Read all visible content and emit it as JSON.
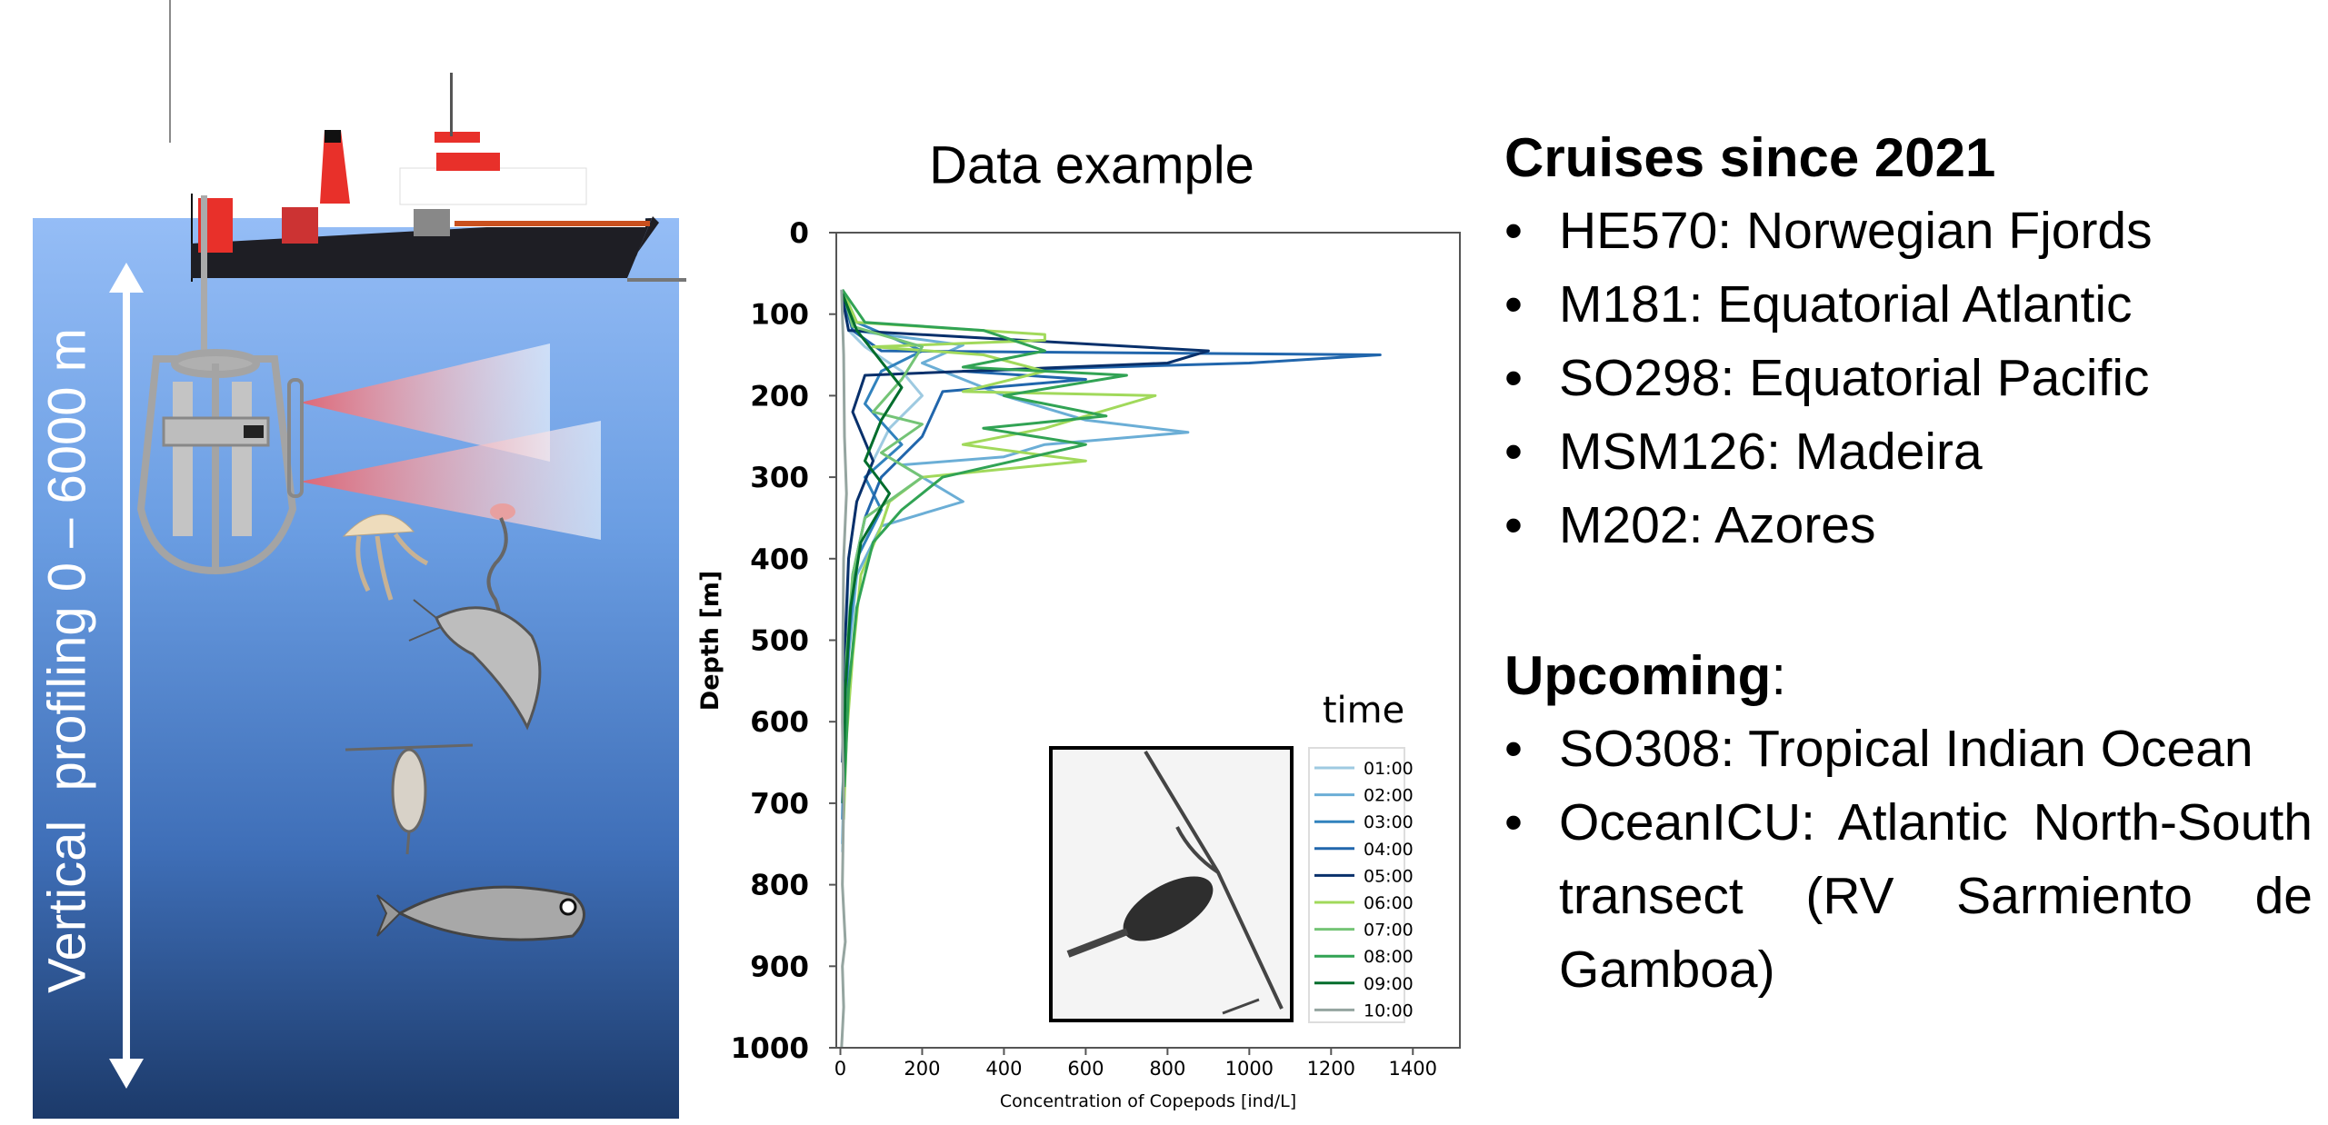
{
  "illustration": {
    "profiling_label": "Vertical  profiling 0 – 6000 m",
    "ocean_top_color": "#95bdf6",
    "ocean_bottom_color": "#1c3a6a"
  },
  "right_panel": {
    "cruises_heading": "Cruises since 2021",
    "cruises": [
      "HE570: Norwegian Fjords",
      "M181: Equatorial Atlantic",
      "SO298: Equatorial Pacific",
      "MSM126: Madeira",
      "M202: Azores"
    ],
    "upcoming_heading": "Upcoming",
    "upcoming_colon": ":",
    "upcoming": [
      "SO308: Tropical Indian Ocean",
      "OceanICU: Atlantic North-South transect (RV Sarmiento de Gamboa)"
    ],
    "bullet": "•"
  },
  "chart_data": {
    "type": "line",
    "title": "Data example",
    "xlabel": "Concentration of Copepods [ind/L]",
    "ylabel": "Depth [m]",
    "xlim": [
      -10,
      1515
    ],
    "ylim": [
      1000,
      0
    ],
    "xticks": [
      0,
      200,
      400,
      600,
      800,
      1000,
      1200,
      1400
    ],
    "yticks": [
      0,
      100,
      200,
      300,
      400,
      500,
      600,
      700,
      800,
      900,
      1000
    ],
    "grid": false,
    "legend_title": "time",
    "legend_position": "bottom-right",
    "series": [
      {
        "name": "01:00",
        "color": "#9ecae1",
        "points": [
          [
            5,
            70
          ],
          [
            20,
            120
          ],
          [
            60,
            140
          ],
          [
            150,
            170
          ],
          [
            200,
            200
          ],
          [
            120,
            240
          ],
          [
            80,
            280
          ],
          [
            40,
            330
          ],
          [
            20,
            400
          ],
          [
            15,
            500
          ],
          [
            10,
            600
          ],
          [
            8,
            700
          ],
          [
            5,
            760
          ]
        ]
      },
      {
        "name": "02:00",
        "color": "#6baed6",
        "points": [
          [
            5,
            70
          ],
          [
            30,
            120
          ],
          [
            300,
            138
          ],
          [
            200,
            160
          ],
          [
            400,
            200
          ],
          [
            600,
            230
          ],
          [
            850,
            245
          ],
          [
            500,
            260
          ],
          [
            400,
            275
          ],
          [
            150,
            285
          ],
          [
            300,
            330
          ],
          [
            100,
            360
          ],
          [
            40,
            420
          ],
          [
            20,
            520
          ],
          [
            10,
            640
          ],
          [
            5,
            750
          ]
        ]
      },
      {
        "name": "03:00",
        "color": "#3182bd",
        "points": [
          [
            5,
            70
          ],
          [
            40,
            110
          ],
          [
            200,
            145
          ],
          [
            100,
            170
          ],
          [
            60,
            210
          ],
          [
            150,
            260
          ],
          [
            60,
            300
          ],
          [
            100,
            340
          ],
          [
            40,
            400
          ],
          [
            20,
            500
          ],
          [
            10,
            600
          ],
          [
            5,
            720
          ]
        ]
      },
      {
        "name": "04:00",
        "color": "#2166ac",
        "points": [
          [
            5,
            75
          ],
          [
            30,
            120
          ],
          [
            100,
            145
          ],
          [
            1320,
            150
          ],
          [
            1000,
            160
          ],
          [
            300,
            170
          ],
          [
            600,
            180
          ],
          [
            250,
            195
          ],
          [
            200,
            250
          ],
          [
            100,
            300
          ],
          [
            60,
            350
          ],
          [
            30,
            420
          ],
          [
            15,
            550
          ],
          [
            5,
            700
          ]
        ]
      },
      {
        "name": "05:00",
        "color": "#08306b",
        "points": [
          [
            5,
            80
          ],
          [
            20,
            120
          ],
          [
            900,
            145
          ],
          [
            800,
            160
          ],
          [
            60,
            175
          ],
          [
            30,
            220
          ],
          [
            80,
            280
          ],
          [
            40,
            330
          ],
          [
            20,
            400
          ],
          [
            10,
            520
          ],
          [
            5,
            650
          ]
        ]
      },
      {
        "name": "06:00",
        "color": "#a1d95b",
        "points": [
          [
            5,
            70
          ],
          [
            40,
            110
          ],
          [
            500,
            125
          ],
          [
            500,
            132
          ],
          [
            80,
            140
          ],
          [
            350,
            150
          ],
          [
            500,
            170
          ],
          [
            300,
            195
          ],
          [
            770,
            200
          ],
          [
            600,
            225
          ],
          [
            500,
            240
          ],
          [
            300,
            260
          ],
          [
            600,
            280
          ],
          [
            200,
            300
          ],
          [
            120,
            330
          ],
          [
            100,
            360
          ],
          [
            50,
            420
          ],
          [
            30,
            520
          ],
          [
            15,
            620
          ],
          [
            8,
            720
          ]
        ]
      },
      {
        "name": "07:00",
        "color": "#74c476",
        "points": [
          [
            5,
            70
          ],
          [
            30,
            115
          ],
          [
            200,
            140
          ],
          [
            150,
            180
          ],
          [
            80,
            220
          ],
          [
            200,
            235
          ],
          [
            100,
            270
          ],
          [
            200,
            300
          ],
          [
            60,
            350
          ],
          [
            30,
            420
          ],
          [
            15,
            520
          ],
          [
            8,
            650
          ]
        ]
      },
      {
        "name": "08:00",
        "color": "#31a354",
        "points": [
          [
            5,
            70
          ],
          [
            60,
            110
          ],
          [
            350,
            120
          ],
          [
            500,
            145
          ],
          [
            300,
            165
          ],
          [
            700,
            175
          ],
          [
            400,
            200
          ],
          [
            650,
            225
          ],
          [
            350,
            240
          ],
          [
            600,
            260
          ],
          [
            250,
            300
          ],
          [
            150,
            340
          ],
          [
            80,
            380
          ],
          [
            40,
            460
          ],
          [
            20,
            560
          ],
          [
            10,
            680
          ]
        ]
      },
      {
        "name": "09:00",
        "color": "#006d2c",
        "points": [
          [
            5,
            75
          ],
          [
            40,
            120
          ],
          [
            150,
            190
          ],
          [
            100,
            230
          ],
          [
            60,
            280
          ],
          [
            120,
            320
          ],
          [
            50,
            380
          ],
          [
            25,
            460
          ],
          [
            12,
            560
          ],
          [
            6,
            700
          ]
        ]
      },
      {
        "name": "10:00",
        "color": "#95a5a0",
        "points": [
          [
            3,
            70
          ],
          [
            8,
            150
          ],
          [
            10,
            250
          ],
          [
            15,
            320
          ],
          [
            8,
            400
          ],
          [
            6,
            500
          ],
          [
            5,
            600
          ],
          [
            8,
            700
          ],
          [
            5,
            800
          ],
          [
            12,
            870
          ],
          [
            5,
            900
          ],
          [
            8,
            950
          ],
          [
            3,
            1000
          ]
        ]
      }
    ]
  }
}
